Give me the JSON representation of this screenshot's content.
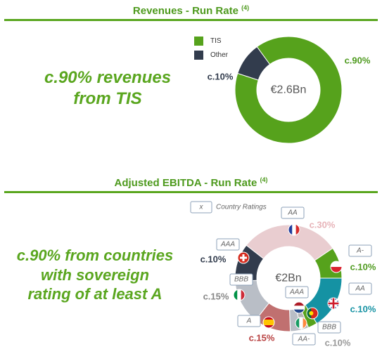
{
  "colors": {
    "accent": "#5aa61f",
    "tis": "#56a21c",
    "other": "#323c4d"
  },
  "chart_data": [
    {
      "type": "pie",
      "title": "Revenues - Run Rate",
      "title_note": "(4)",
      "center_label": "€2.6Bn",
      "legend": [
        {
          "name": "TIS",
          "color": "#56a21c"
        },
        {
          "name": "Other",
          "color": "#323c4d"
        }
      ],
      "slices": [
        {
          "name": "TIS",
          "value": 90,
          "label": "c.90%",
          "color": "#56a21c"
        },
        {
          "name": "Other",
          "value": 10,
          "label": "c.10%",
          "color": "#323c4d"
        }
      ]
    },
    {
      "type": "pie",
      "title": "Adjusted EBITDA - Run Rate",
      "title_note": "(4)",
      "center_label": "€2Bn",
      "legend_box": {
        "symbol": "x",
        "text": "Country Ratings"
      },
      "slices": [
        {
          "country": "France",
          "icon": "france-flag-icon",
          "rating": "AA",
          "value": 30,
          "label": "c.30%",
          "color": "#e9cdd0",
          "label_color": "#e7b3b8"
        },
        {
          "country": "Poland",
          "icon": "poland-flag-icon",
          "rating": "A-",
          "value": 10,
          "label": "c.10%",
          "color": "#56a21c",
          "label_color": "#4e9a1e"
        },
        {
          "country": "United Kingdom",
          "icon": "uk-flag-icon",
          "rating": "AA",
          "value": 10,
          "label": "c.10%",
          "color": "#1592a3",
          "label_color": "#1592a3"
        },
        {
          "country": "Ireland",
          "icon": "ireland-flag-icon",
          "rating": "BBB",
          "value": 0,
          "label": "",
          "color": "#56a21c",
          "label_color": "#999999"
        },
        {
          "country": "Netherlands",
          "icon": "netherlands-flag-icon",
          "rating": "AAA",
          "value": 0,
          "label": "",
          "color": "#b3b3b3",
          "label_color": "#999999"
        },
        {
          "country": "Portugal",
          "icon": "portugal-flag-icon",
          "rating": "AA-",
          "value": 10,
          "label": "c.10%",
          "color": "#b9bec6",
          "label_color": "#999999"
        },
        {
          "country": "Spain",
          "icon": "spain-flag-icon",
          "rating": "A",
          "value": 15,
          "label": "c.15%",
          "color": "#c07070",
          "label_color": "#b84040"
        },
        {
          "country": "Italy",
          "icon": "italy-flag-icon",
          "rating": "BBB",
          "value": 15,
          "label": "c.15%",
          "color": "#b9bec6",
          "label_color": "#888888"
        },
        {
          "country": "Switzerland",
          "icon": "switzerland-flag-icon",
          "rating": "AAA",
          "value": 10,
          "label": "c.10%",
          "color": "#323c4d",
          "label_color": "#323c4d"
        }
      ]
    }
  ],
  "headline_1": [
    "c.90% revenues",
    "from TIS"
  ],
  "headline_2": [
    "c.90% from countries",
    "with sovereign",
    "rating of at least A"
  ]
}
